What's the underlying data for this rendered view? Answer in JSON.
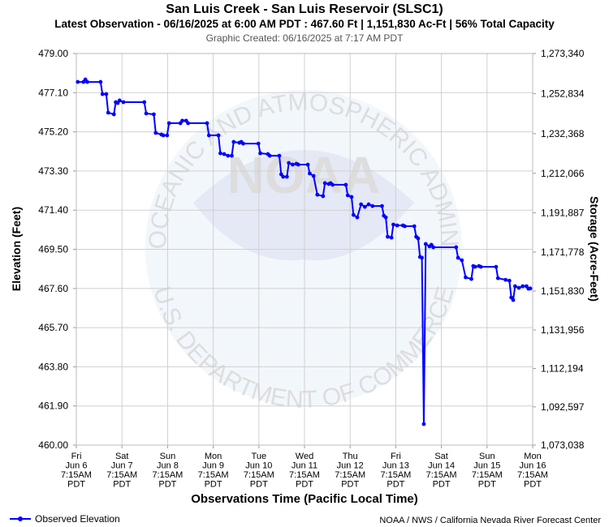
{
  "chart_data": {
    "type": "line",
    "title": "San Luis Creek - San Luis Reservoir (SLSC1)",
    "subtitle": "Latest Observation - 06/16/2025 at 6:00 AM PDT : 467.60 Ft | 1,151,830 Ac-Ft | 56% Total Capacity",
    "created": "Graphic Created: 06/16/2025 at 7:17 AM PDT",
    "y_label": "Elevation (Feet)",
    "y2_label": "Storage (Acre-Feet)",
    "x_label": "Observations Time (Pacific Local Time)",
    "footer": "NOAA / NWS / California Nevada River Forecast Center",
    "watermark": [
      "NATIONAL OCEANIC AND ATMOSPHERIC ADMINISTRATION",
      "U.S. DEPARTMENT OF COMMERCE",
      "NOAA"
    ],
    "grid": true,
    "legend": "bottom-left",
    "xlim": [
      "06/06 07:15",
      "06/16 07:15"
    ],
    "xticks": [
      {
        "value": "06/06 07:15",
        "label": [
          "Fri",
          "Jun 6",
          "7:15AM",
          "PDT"
        ]
      },
      {
        "value": "06/07 07:15",
        "label": [
          "Sat",
          "Jun 7",
          "7:15AM",
          "PDT"
        ]
      },
      {
        "value": "06/08 07:15",
        "label": [
          "Sun",
          "Jun 8",
          "7:15AM",
          "PDT"
        ]
      },
      {
        "value": "06/09 07:15",
        "label": [
          "Mon",
          "Jun 9",
          "7:15AM",
          "PDT"
        ]
      },
      {
        "value": "06/10 07:15",
        "label": [
          "Tue",
          "Jun 10",
          "7:15AM",
          "PDT"
        ]
      },
      {
        "value": "06/11 07:15",
        "label": [
          "Wed",
          "Jun 11",
          "7:15AM",
          "PDT"
        ]
      },
      {
        "value": "06/12 07:15",
        "label": [
          "Thu",
          "Jun 12",
          "7:15AM",
          "PDT"
        ]
      },
      {
        "value": "06/13 07:15",
        "label": [
          "Fri",
          "Jun 13",
          "7:15AM",
          "PDT"
        ]
      },
      {
        "value": "06/14 07:15",
        "label": [
          "Sat",
          "Jun 14",
          "7:15AM",
          "PDT"
        ]
      },
      {
        "value": "06/15 07:15",
        "label": [
          "Sun",
          "Jun 15",
          "7:15AM",
          "PDT"
        ]
      },
      {
        "value": "06/16 07:15",
        "label": [
          "Mon",
          "Jun 16",
          "7:15AM",
          "PDT"
        ]
      }
    ],
    "ylim": [
      460,
      479
    ],
    "yticks": [
      {
        "value": 460,
        "label": "460.00"
      },
      {
        "value": 461.9,
        "label": "461.90"
      },
      {
        "value": 463.8,
        "label": "463.80"
      },
      {
        "value": 465.7,
        "label": "465.70"
      },
      {
        "value": 467.6,
        "label": "467.60"
      },
      {
        "value": 469.5,
        "label": "469.50"
      },
      {
        "value": 471.4,
        "label": "471.40"
      },
      {
        "value": 473.3,
        "label": "473.30"
      },
      {
        "value": 475.2,
        "label": "475.20"
      },
      {
        "value": 477.1,
        "label": "477.10"
      },
      {
        "value": 479,
        "label": "479.00"
      }
    ],
    "y2lim": [
      1073038,
      1273340
    ],
    "y2ticks": [
      {
        "value": 1073038,
        "label": "1,073,038"
      },
      {
        "value": 1092597,
        "label": "1,092,597"
      },
      {
        "value": 1112194,
        "label": "1,112,194"
      },
      {
        "value": 1131956,
        "label": "1,131,956"
      },
      {
        "value": 1151830,
        "label": "1,151,830"
      },
      {
        "value": 1171778,
        "label": "1,171,778"
      },
      {
        "value": 1191887,
        "label": "1,191,887"
      },
      {
        "value": 1212066,
        "label": "1,212,066"
      },
      {
        "value": 1232368,
        "label": "1,232,368"
      },
      {
        "value": 1252834,
        "label": "1,252,834"
      },
      {
        "value": 1273340,
        "label": "1,273,340"
      }
    ],
    "x": [
      "06/06 08:00",
      "06/06 11:00",
      "06/06 12:00",
      "06/06 13:00",
      "06/06 20:00",
      "06/06 21:00",
      "06/06 23:00",
      "06/07 00:00",
      "06/07 03:00",
      "06/07 04:00",
      "06/07 05:00",
      "06/07 06:00",
      "06/07 08:00",
      "06/07 19:00",
      "06/07 20:00",
      "06/08 00:00",
      "06/08 01:00",
      "06/08 04:00",
      "06/08 05:00",
      "06/08 07:00",
      "06/08 08:00",
      "06/08 14:00",
      "06/08 15:00",
      "06/08 17:00",
      "06/08 18:00",
      "06/09 04:00",
      "06/09 05:00",
      "06/09 10:00",
      "06/09 11:00",
      "06/09 13:00",
      "06/09 15:00",
      "06/09 17:00",
      "06/09 18:00",
      "06/09 21:00",
      "06/09 22:00",
      "06/09 23:00",
      "06/10 07:00",
      "06/10 08:00",
      "06/10 12:00",
      "06/10 13:00",
      "06/10 18:00",
      "06/10 19:00",
      "06/10 20:00",
      "06/10 22:00",
      "06/10 23:00",
      "06/11 01:00",
      "06/11 03:00",
      "06/11 04:00",
      "06/11 09:00",
      "06/11 10:00",
      "06/11 12:00",
      "06/11 14:00",
      "06/11 17:00",
      "06/11 18:00",
      "06/11 20:00",
      "06/11 21:00",
      "06/11 22:00",
      "06/12 05:00",
      "06/12 06:00",
      "06/12 08:00",
      "06/12 09:00",
      "06/12 11:00",
      "06/12 13:00",
      "06/12 15:00",
      "06/12 17:00",
      "06/12 19:00",
      "06/13 00:00",
      "06/13 01:00",
      "06/13 02:00",
      "06/13 03:00",
      "06/13 05:00",
      "06/13 06:00",
      "06/13 08:00",
      "06/13 11:00",
      "06/13 12:00",
      "06/13 17:00",
      "06/13 18:00",
      "06/13 19:00",
      "06/13 20:00",
      "06/13 21:00",
      "06/13 22:00",
      "06/13 23:00",
      "06/14 01:00",
      "06/14 02:00",
      "06/14 03:00",
      "06/14 15:00",
      "06/14 16:00",
      "06/14 18:00",
      "06/14 20:00",
      "06/14 23:00",
      "06/15 00:00",
      "06/15 01:00",
      "06/15 03:00",
      "06/15 04:00",
      "06/15 12:00",
      "06/15 13:00",
      "06/15 17:00",
      "06/15 19:00",
      "06/15 20:00",
      "06/15 21:00",
      "06/15 22:00",
      "06/16 00:00",
      "06/16 02:00",
      "06/16 04:00",
      "06/16 05:00",
      "06/16 06:00"
    ],
    "series": [
      {
        "name": "Observed Elevation",
        "color": "#0000ff",
        "values": [
          477.62,
          477.62,
          477.74,
          477.62,
          477.62,
          477.03,
          477.03,
          476.13,
          476.05,
          476.64,
          476.6,
          476.72,
          476.64,
          476.64,
          476.09,
          476.05,
          475.15,
          475.07,
          475.03,
          475.03,
          475.62,
          475.62,
          475.74,
          475.74,
          475.62,
          475.62,
          475.03,
          475.03,
          474.16,
          474.12,
          474.04,
          474.04,
          474.71,
          474.67,
          474.71,
          474.63,
          474.63,
          474.16,
          474.12,
          474.04,
          474.04,
          473.14,
          473.02,
          473.02,
          473.69,
          473.61,
          473.65,
          473.61,
          473.61,
          473.18,
          473.06,
          472.15,
          472.08,
          472.71,
          472.67,
          472.71,
          472.63,
          472.63,
          472.12,
          472.04,
          471.17,
          471.05,
          471.68,
          471.56,
          471.68,
          471.6,
          471.6,
          471.13,
          471.05,
          470.11,
          470.07,
          470.7,
          470.66,
          470.66,
          470.62,
          470.62,
          470.11,
          470.03,
          469.13,
          469.09,
          461.02,
          469.76,
          469.64,
          469.72,
          469.6,
          469.6,
          469.09,
          468.97,
          468.14,
          468.06,
          468.69,
          468.65,
          468.69,
          468.65,
          468.65,
          468.1,
          468.02,
          467.98,
          467.16,
          467.04,
          467.71,
          467.63,
          467.71,
          467.71,
          467.59,
          467.6
        ]
      }
    ]
  }
}
